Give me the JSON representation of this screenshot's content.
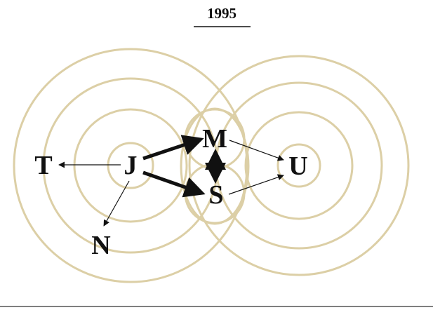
{
  "title": "1995",
  "nodes": [
    {
      "label": "J"
    },
    {
      "label": "M"
    },
    {
      "label": "S"
    },
    {
      "label": "U"
    },
    {
      "label": "T"
    },
    {
      "label": "N"
    }
  ]
}
